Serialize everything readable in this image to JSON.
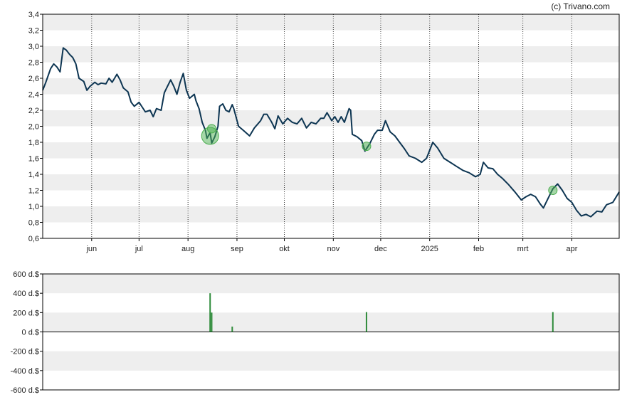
{
  "credit": "(c) Trivano.com",
  "colors": {
    "price_line": "#0d3552",
    "band": "#eeeeee",
    "marker_fill": "#4caf50",
    "bar": "#2e8b3a",
    "axis": "#000000"
  },
  "chart_data": [
    {
      "type": "line",
      "title": "",
      "xlabel": "",
      "ylabel": "",
      "x_tick_labels": [
        "jun",
        "jul",
        "aug",
        "sep",
        "okt",
        "nov",
        "dec",
        "2025",
        "feb",
        "mrt",
        "apr"
      ],
      "y_tick_labels": [
        "0,6",
        "0,8",
        "1,0",
        "1,2",
        "1,4",
        "1,6",
        "1,8",
        "2,0",
        "2,2",
        "2,4",
        "2,6",
        "2,8",
        "3,0",
        "3,2",
        "3,4"
      ],
      "ylim": [
        0.6,
        3.4
      ],
      "grid": "alternating horizontal bands, dotted vertical month lines",
      "x_domain": [
        "2024-05-01",
        "2025-05-01"
      ],
      "series": [
        {
          "points": [
            [
              "2024-05-01",
              2.45
            ],
            [
              "2024-05-03",
              2.55
            ],
            [
              "2024-05-06",
              2.72
            ],
            [
              "2024-05-08",
              2.78
            ],
            [
              "2024-05-10",
              2.74
            ],
            [
              "2024-05-12",
              2.68
            ],
            [
              "2024-05-14",
              2.98
            ],
            [
              "2024-05-16",
              2.95
            ],
            [
              "2024-05-18",
              2.9
            ],
            [
              "2024-05-20",
              2.86
            ],
            [
              "2024-05-22",
              2.78
            ],
            [
              "2024-05-24",
              2.6
            ],
            [
              "2024-05-27",
              2.56
            ],
            [
              "2024-05-29",
              2.45
            ],
            [
              "2024-05-31",
              2.5
            ],
            [
              "2024-06-03",
              2.55
            ],
            [
              "2024-06-05",
              2.52
            ],
            [
              "2024-06-07",
              2.54
            ],
            [
              "2024-06-10",
              2.53
            ],
            [
              "2024-06-12",
              2.6
            ],
            [
              "2024-06-14",
              2.55
            ],
            [
              "2024-06-17",
              2.65
            ],
            [
              "2024-06-19",
              2.58
            ],
            [
              "2024-06-21",
              2.48
            ],
            [
              "2024-06-24",
              2.43
            ],
            [
              "2024-06-26",
              2.3
            ],
            [
              "2024-06-28",
              2.25
            ],
            [
              "2024-07-01",
              2.3
            ],
            [
              "2024-07-03",
              2.24
            ],
            [
              "2024-07-05",
              2.18
            ],
            [
              "2024-07-08",
              2.2
            ],
            [
              "2024-07-10",
              2.12
            ],
            [
              "2024-07-12",
              2.22
            ],
            [
              "2024-07-15",
              2.2
            ],
            [
              "2024-07-17",
              2.42
            ],
            [
              "2024-07-19",
              2.5
            ],
            [
              "2024-07-21",
              2.58
            ],
            [
              "2024-07-23",
              2.5
            ],
            [
              "2024-07-25",
              2.4
            ],
            [
              "2024-07-27",
              2.55
            ],
            [
              "2024-07-29",
              2.66
            ],
            [
              "2024-07-31",
              2.45
            ],
            [
              "2024-08-02",
              2.35
            ],
            [
              "2024-08-05",
              2.4
            ],
            [
              "2024-08-06",
              2.32
            ],
            [
              "2024-08-08",
              2.22
            ],
            [
              "2024-08-10",
              2.05
            ],
            [
              "2024-08-12",
              1.95
            ],
            [
              "2024-08-13",
              1.85
            ],
            [
              "2024-08-15",
              1.92
            ],
            [
              "2024-08-16",
              1.79
            ],
            [
              "2024-08-18",
              1.87
            ],
            [
              "2024-08-20",
              2.0
            ],
            [
              "2024-08-21",
              2.25
            ],
            [
              "2024-08-23",
              2.28
            ],
            [
              "2024-08-25",
              2.2
            ],
            [
              "2024-08-27",
              2.18
            ],
            [
              "2024-08-29",
              2.27
            ],
            [
              "2024-08-30",
              2.22
            ],
            [
              "2024-09-02",
              2.0
            ],
            [
              "2024-09-05",
              1.95
            ],
            [
              "2024-09-09",
              1.88
            ],
            [
              "2024-09-12",
              1.98
            ],
            [
              "2024-09-16",
              2.07
            ],
            [
              "2024-09-18",
              2.15
            ],
            [
              "2024-09-20",
              2.15
            ],
            [
              "2024-09-23",
              2.05
            ],
            [
              "2024-09-25",
              1.97
            ],
            [
              "2024-09-27",
              2.13
            ],
            [
              "2024-09-30",
              2.03
            ],
            [
              "2024-10-03",
              2.1
            ],
            [
              "2024-10-06",
              2.05
            ],
            [
              "2024-10-09",
              2.03
            ],
            [
              "2024-10-12",
              2.1
            ],
            [
              "2024-10-15",
              1.98
            ],
            [
              "2024-10-18",
              2.05
            ],
            [
              "2024-10-21",
              2.03
            ],
            [
              "2024-10-24",
              2.1
            ],
            [
              "2024-10-26",
              2.1
            ],
            [
              "2024-10-28",
              2.17
            ],
            [
              "2024-10-31",
              2.07
            ],
            [
              "2024-11-02",
              2.12
            ],
            [
              "2024-11-04",
              2.05
            ],
            [
              "2024-11-06",
              2.12
            ],
            [
              "2024-11-08",
              2.05
            ],
            [
              "2024-11-11",
              2.22
            ],
            [
              "2024-11-12",
              2.2
            ],
            [
              "2024-11-13",
              1.9
            ],
            [
              "2024-11-16",
              1.87
            ],
            [
              "2024-11-19",
              1.82
            ],
            [
              "2024-11-21",
              1.69
            ],
            [
              "2024-11-24",
              1.78
            ],
            [
              "2024-11-27",
              1.9
            ],
            [
              "2024-11-29",
              1.95
            ],
            [
              "2024-12-02",
              1.95
            ],
            [
              "2024-12-04",
              2.07
            ],
            [
              "2024-12-07",
              1.93
            ],
            [
              "2024-12-10",
              1.88
            ],
            [
              "2024-12-13",
              1.8
            ],
            [
              "2024-12-16",
              1.72
            ],
            [
              "2024-12-19",
              1.63
            ],
            [
              "2024-12-23",
              1.6
            ],
            [
              "2024-12-27",
              1.55
            ],
            [
              "2024-12-30",
              1.6
            ],
            [
              "2025-01-03",
              1.8
            ],
            [
              "2025-01-06",
              1.73
            ],
            [
              "2025-01-10",
              1.6
            ],
            [
              "2025-01-14",
              1.55
            ],
            [
              "2025-01-18",
              1.5
            ],
            [
              "2025-01-22",
              1.45
            ],
            [
              "2025-01-26",
              1.42
            ],
            [
              "2025-01-30",
              1.37
            ],
            [
              "2025-02-02",
              1.4
            ],
            [
              "2025-02-04",
              1.55
            ],
            [
              "2025-02-07",
              1.48
            ],
            [
              "2025-02-10",
              1.47
            ],
            [
              "2025-02-13",
              1.4
            ],
            [
              "2025-02-16",
              1.35
            ],
            [
              "2025-02-20",
              1.27
            ],
            [
              "2025-02-24",
              1.18
            ],
            [
              "2025-02-28",
              1.08
            ],
            [
              "2025-03-03",
              1.12
            ],
            [
              "2025-03-06",
              1.15
            ],
            [
              "2025-03-09",
              1.12
            ],
            [
              "2025-03-12",
              1.03
            ],
            [
              "2025-03-14",
              0.98
            ],
            [
              "2025-03-17",
              1.1
            ],
            [
              "2025-03-20",
              1.22
            ],
            [
              "2025-03-23",
              1.28
            ],
            [
              "2025-03-26",
              1.2
            ],
            [
              "2025-03-29",
              1.1
            ],
            [
              "2025-04-01",
              1.05
            ],
            [
              "2025-04-04",
              0.95
            ],
            [
              "2025-04-07",
              0.88
            ],
            [
              "2025-04-10",
              0.9
            ],
            [
              "2025-04-13",
              0.87
            ],
            [
              "2025-04-17",
              0.94
            ],
            [
              "2025-04-20",
              0.93
            ],
            [
              "2025-04-23",
              1.02
            ],
            [
              "2025-04-27",
              1.05
            ],
            [
              "2025-05-01",
              1.18
            ]
          ]
        }
      ],
      "markers": [
        {
          "date": "2024-08-15",
          "value": 1.88,
          "size": "large"
        },
        {
          "date": "2024-08-16",
          "value": 1.97,
          "size": "small"
        },
        {
          "date": "2024-11-22",
          "value": 1.75,
          "size": "small"
        },
        {
          "date": "2025-03-20",
          "value": 1.2,
          "size": "small"
        }
      ]
    },
    {
      "type": "bar",
      "title": "",
      "xlabel": "",
      "ylabel": "",
      "y_tick_labels": [
        "600 d.$",
        "400 d.$",
        "200 d.$",
        "0 d.$",
        "-200 d.$",
        "-400 d.$",
        "-600 d.$"
      ],
      "ylim": [
        -600,
        600
      ],
      "grid": "alternating horizontal bands",
      "bars": [
        {
          "date": "2024-08-15",
          "value": 400
        },
        {
          "date": "2024-08-16",
          "value": 200
        },
        {
          "date": "2024-08-29",
          "value": 55
        },
        {
          "date": "2024-11-22",
          "value": 205
        },
        {
          "date": "2025-03-20",
          "value": 205
        }
      ]
    }
  ]
}
